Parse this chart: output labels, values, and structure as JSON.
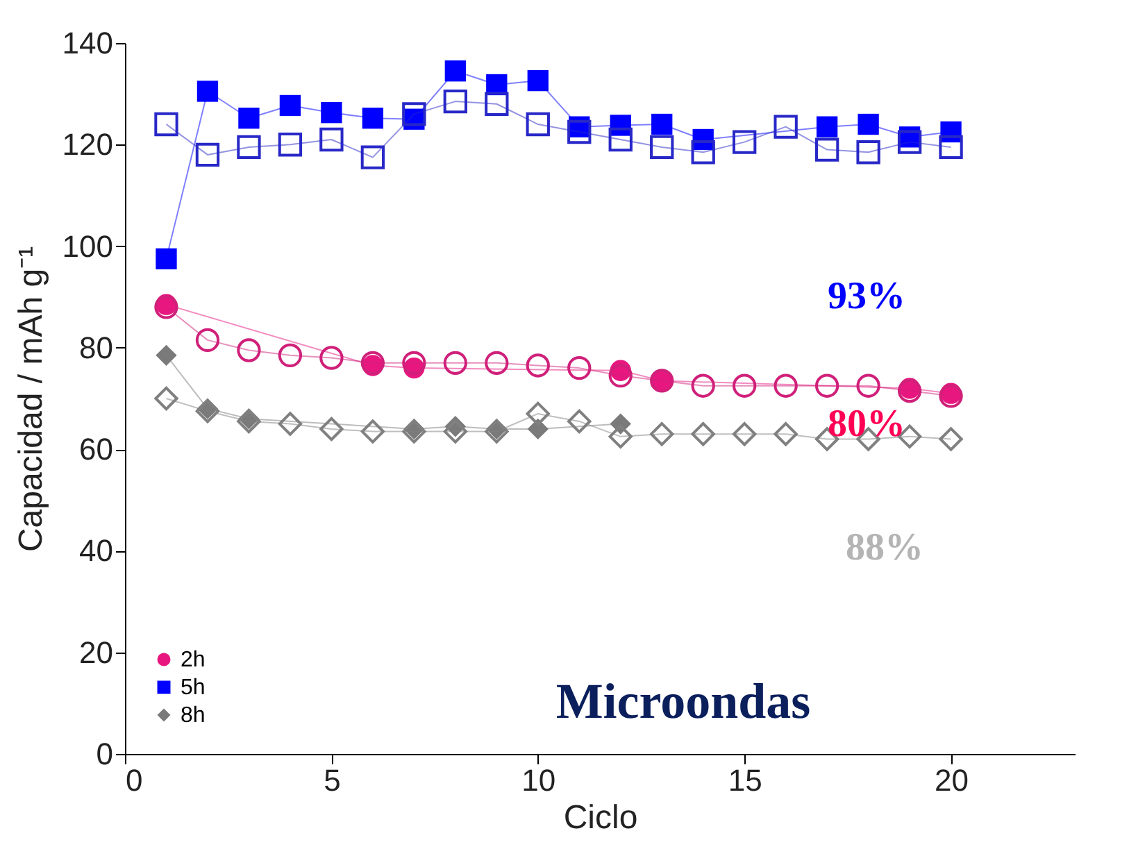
{
  "chart_data": {
    "type": "line",
    "xlabel": "Ciclo",
    "ylabel": "Capacidad / mAh g⁻¹",
    "x": [
      1,
      2,
      3,
      4,
      5,
      6,
      7,
      8,
      9,
      10,
      11,
      12,
      13,
      14,
      15,
      16,
      17,
      18,
      19,
      20
    ],
    "xlim": [
      0,
      23
    ],
    "xticks": [
      0,
      5,
      10,
      15,
      20
    ],
    "ylim": [
      0,
      140
    ],
    "yticks": [
      0,
      20,
      40,
      60,
      80,
      100,
      120,
      140
    ],
    "grid": false,
    "legend": "bottom left",
    "series": [
      {
        "name": "2h",
        "color": "#e8177f",
        "marker": "circle",
        "values": [
          88.5,
          null,
          null,
          null,
          null,
          76.5,
          76,
          null,
          null,
          null,
          null,
          75.5,
          73.5,
          null,
          null,
          null,
          null,
          null,
          72,
          71
        ]
      },
      {
        "color": "#d0207a",
        "marker": "circle",
        "values": [
          88,
          81.5,
          79.5,
          78.5,
          78,
          77,
          77,
          77,
          77,
          76.5,
          76,
          74.5,
          73.5,
          72.5,
          72.5,
          72.5,
          72.5,
          72.5,
          71.5,
          70.5
        ]
      },
      {
        "name": "5h",
        "color": "#0000ff",
        "marker": "square",
        "values": [
          97.5,
          130.5,
          125.2,
          127.7,
          126.3,
          125.2,
          125,
          134.5,
          131.8,
          132.6,
          123.5,
          123.8,
          124,
          121,
          null,
          null,
          123.5,
          124,
          121.5,
          122.5
        ]
      },
      {
        "color": "#2828c8",
        "marker": "square",
        "values": [
          124,
          118,
          119.5,
          120,
          121,
          117.5,
          126,
          128.5,
          128,
          124,
          122.5,
          121,
          119.5,
          118.5,
          120.5,
          123.5,
          119,
          118.5,
          120.5,
          119.5
        ]
      },
      {
        "name": "8h",
        "color": "#7a7a7a",
        "marker": "diamond",
        "values": [
          78.5,
          68,
          66,
          null,
          null,
          null,
          64,
          64.5,
          64,
          64,
          null,
          65,
          null,
          null,
          null,
          null,
          null,
          null,
          null,
          null
        ]
      },
      {
        "color": "#808080",
        "marker": "diamond",
        "values": [
          70,
          67.5,
          65.5,
          65,
          64,
          63.5,
          63.5,
          63.5,
          63.5,
          67,
          65.5,
          62.5,
          63,
          63,
          63,
          63,
          62,
          62,
          62.5,
          62
        ]
      }
    ],
    "annotations": [
      "93%",
      "80%",
      "88%",
      "Microondas"
    ]
  }
}
